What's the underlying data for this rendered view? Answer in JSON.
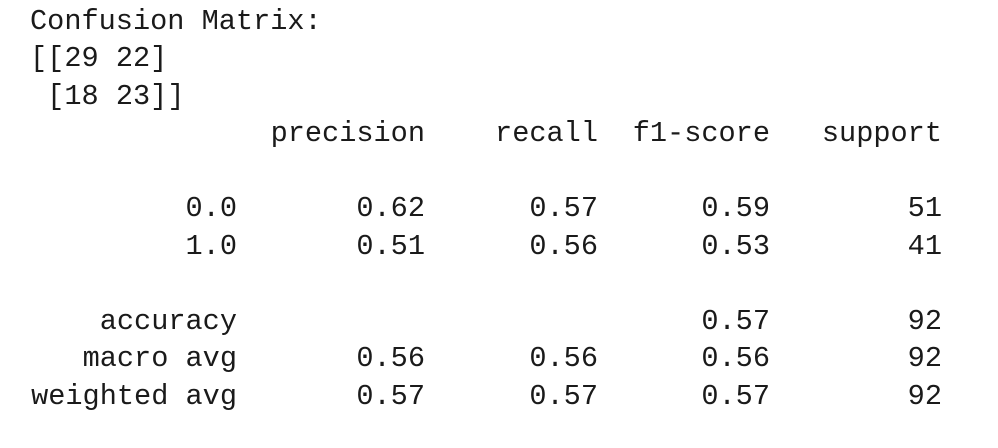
{
  "title": "Confusion Matrix:",
  "matrix": [
    [
      29,
      22
    ],
    [
      18,
      23
    ]
  ],
  "report": {
    "columns": [
      "precision",
      "recall",
      "f1-score",
      "support"
    ],
    "rows": [
      {
        "label": "0.0",
        "values": [
          0.62,
          0.57,
          0.59,
          51
        ]
      },
      {
        "label": "1.0",
        "values": [
          0.51,
          0.56,
          0.53,
          41
        ]
      },
      {
        "label": "accuracy",
        "values": [
          null,
          null,
          0.57,
          92
        ]
      },
      {
        "label": "macro avg",
        "values": [
          0.56,
          0.56,
          0.56,
          92
        ]
      },
      {
        "label": "weighted avg",
        "values": [
          0.57,
          0.57,
          0.57,
          92
        ]
      }
    ]
  }
}
